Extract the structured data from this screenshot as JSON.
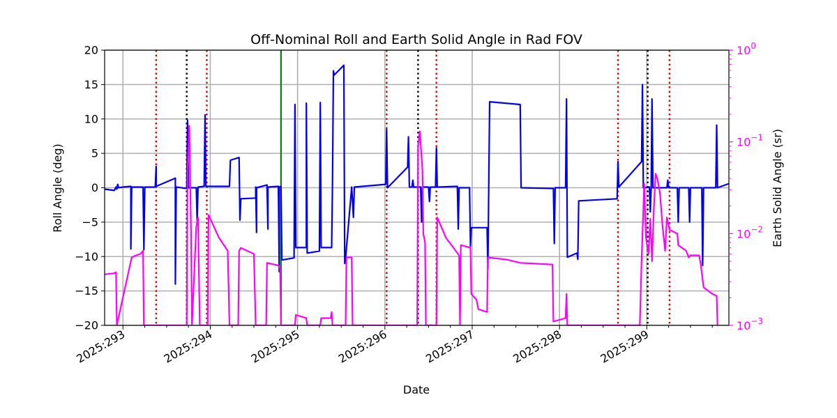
{
  "chart_data": {
    "type": "line",
    "title": "Off-Nominal Roll and Earth Solid Angle in Rad FOV",
    "xlabel": "Date",
    "ylabel": "Roll Angle (deg)",
    "y2label": "Earth Solid Angle (sr)",
    "xlim": [
      292.79,
      299.94
    ],
    "ylim": [
      -20,
      20
    ],
    "y2lim": [
      0.001,
      1
    ],
    "y2scale": "log",
    "grid": true,
    "x_ticks": [
      {
        "value": 293,
        "label": "2025:293"
      },
      {
        "value": 294,
        "label": "2025:294"
      },
      {
        "value": 295,
        "label": "2025:295"
      },
      {
        "value": 296,
        "label": "2025:296"
      },
      {
        "value": 297,
        "label": "2025:297"
      },
      {
        "value": 298,
        "label": "2025:298"
      },
      {
        "value": 299,
        "label": "2025:299"
      }
    ],
    "x_minor_ticks": [
      293.25,
      293.5,
      293.75,
      294.25,
      294.5,
      294.75,
      295.25,
      295.5,
      295.75,
      296.25,
      296.5,
      296.75,
      297.25,
      297.5,
      297.75,
      298.25,
      298.5,
      298.75,
      299.25,
      299.5,
      299.75
    ],
    "y_ticks": [
      {
        "value": 20,
        "label": "20"
      },
      {
        "value": 15,
        "label": "15"
      },
      {
        "value": 10,
        "label": "10"
      },
      {
        "value": 5,
        "label": "5"
      },
      {
        "value": 0,
        "label": "0"
      },
      {
        "value": -5,
        "label": "−5"
      },
      {
        "value": -10,
        "label": "−10"
      },
      {
        "value": -15,
        "label": "−15"
      },
      {
        "value": -20,
        "label": "−20"
      }
    ],
    "y2_ticks": [
      {
        "value": 1,
        "label": "10^0"
      },
      {
        "value": 0.1,
        "label": "10^−1"
      },
      {
        "value": 0.01,
        "label": "10^−2"
      },
      {
        "value": 0.001,
        "label": "10^−3"
      }
    ],
    "vlines": [
      {
        "x": 293.38,
        "color": "#dd0000",
        "style": "dotted"
      },
      {
        "x": 293.73,
        "color": "#000000",
        "style": "dotted"
      },
      {
        "x": 293.96,
        "color": "#dd0000",
        "style": "dotted"
      },
      {
        "x": 294.81,
        "color": "#008000",
        "style": "solid"
      },
      {
        "x": 296.02,
        "color": "#dd0000",
        "style": "dotted"
      },
      {
        "x": 296.38,
        "color": "#000000",
        "style": "dotted"
      },
      {
        "x": 296.59,
        "color": "#dd0000",
        "style": "dotted"
      },
      {
        "x": 298.67,
        "color": "#dd0000",
        "style": "dotted"
      },
      {
        "x": 299.01,
        "color": "#000000",
        "style": "dotted"
      },
      {
        "x": 299.26,
        "color": "#dd0000",
        "style": "dotted"
      }
    ],
    "series": [
      {
        "axis": "left",
        "color": "#0000ee",
        "points": [
          [
            292.79,
            -0.2
          ],
          [
            292.9,
            -0.4
          ],
          [
            292.92,
            0.1
          ],
          [
            292.93,
            -0.2
          ],
          [
            292.94,
            0.5
          ],
          [
            292.95,
            0
          ],
          [
            293.0,
            0.1
          ],
          [
            293.09,
            0.2
          ],
          [
            293.09,
            -8.9
          ],
          [
            293.1,
            0.1
          ],
          [
            293.23,
            0.1
          ],
          [
            293.24,
            -9.0
          ],
          [
            293.25,
            0.1
          ],
          [
            293.37,
            0.1
          ],
          [
            293.38,
            3.1
          ],
          [
            293.38,
            0.2
          ],
          [
            293.6,
            1.4
          ],
          [
            293.6,
            -14.0
          ],
          [
            293.61,
            0.1
          ],
          [
            293.73,
            -0.1
          ],
          [
            293.74,
            9.8
          ],
          [
            293.75,
            0
          ],
          [
            293.84,
            0
          ],
          [
            293.85,
            -5.0
          ],
          [
            293.86,
            0.1
          ],
          [
            293.93,
            0.2
          ],
          [
            293.94,
            10.6
          ],
          [
            293.95,
            0.2
          ],
          [
            294.22,
            0.2
          ],
          [
            294.23,
            4.0
          ],
          [
            294.33,
            4.4
          ],
          [
            294.34,
            -4.7
          ],
          [
            294.35,
            -1.6
          ],
          [
            294.52,
            -1.5
          ],
          [
            294.52,
            0.1
          ],
          [
            294.53,
            -6.5
          ],
          [
            294.53,
            0
          ],
          [
            294.65,
            0.4
          ],
          [
            294.66,
            -6.0
          ],
          [
            294.66,
            0.1
          ],
          [
            294.78,
            0.2
          ],
          [
            294.79,
            -12.2
          ],
          [
            294.79,
            0.1
          ],
          [
            294.81,
            0.2
          ],
          [
            294.82,
            -10.5
          ],
          [
            294.96,
            -10.2
          ],
          [
            294.97,
            12.1
          ],
          [
            294.98,
            -8.7
          ],
          [
            295.1,
            -8.7
          ],
          [
            295.1,
            12.3
          ],
          [
            295.11,
            -9.5
          ],
          [
            295.25,
            -9.2
          ],
          [
            295.26,
            12.4
          ],
          [
            295.27,
            -8.7
          ],
          [
            295.39,
            -8.7
          ],
          [
            295.4,
            0.7
          ],
          [
            295.41,
            17.0
          ],
          [
            295.42,
            16.4
          ],
          [
            295.53,
            17.8
          ],
          [
            295.54,
            -11.0
          ],
          [
            295.55,
            -10.2
          ],
          [
            295.62,
            0.1
          ],
          [
            295.64,
            -4.3
          ],
          [
            295.65,
            0.1
          ],
          [
            296.01,
            0.5
          ],
          [
            296.02,
            8.5
          ],
          [
            296.03,
            0
          ],
          [
            296.26,
            3.0
          ],
          [
            296.27,
            7.4
          ],
          [
            296.28,
            0.1
          ],
          [
            296.31,
            0.1
          ],
          [
            296.32,
            1.1
          ],
          [
            296.33,
            0.1
          ],
          [
            296.41,
            0.1
          ],
          [
            296.42,
            -5.0
          ],
          [
            296.43,
            0.1
          ],
          [
            296.5,
            0.1
          ],
          [
            296.51,
            -2.0
          ],
          [
            296.52,
            0.1
          ],
          [
            296.58,
            0.1
          ],
          [
            296.59,
            5.8
          ],
          [
            296.6,
            0.1
          ],
          [
            296.83,
            0.2
          ],
          [
            296.84,
            -6.0
          ],
          [
            296.85,
            0
          ],
          [
            296.97,
            0
          ],
          [
            296.98,
            -8.5
          ],
          [
            296.99,
            -5.8
          ],
          [
            297.17,
            -5.8
          ],
          [
            297.18,
            -11.8
          ],
          [
            297.2,
            12.5
          ],
          [
            297.55,
            12.1
          ],
          [
            297.56,
            0
          ],
          [
            297.93,
            -0.1
          ],
          [
            297.94,
            -8.1
          ],
          [
            297.95,
            0
          ],
          [
            298.07,
            0
          ],
          [
            298.08,
            12.9
          ],
          [
            298.09,
            -10.1
          ],
          [
            298.2,
            -9.5
          ],
          [
            298.21,
            -10.4
          ],
          [
            298.22,
            -1.9
          ],
          [
            298.66,
            -1.6
          ],
          [
            298.67,
            3.8
          ],
          [
            298.68,
            0.1
          ],
          [
            298.94,
            3.8
          ],
          [
            298.95,
            15.0
          ],
          [
            298.96,
            0
          ],
          [
            299.03,
            0.1
          ],
          [
            299.04,
            -3.5
          ],
          [
            299.05,
            0
          ],
          [
            299.06,
            12.9
          ],
          [
            299.07,
            0
          ],
          [
            299.23,
            0
          ],
          [
            299.24,
            1.1
          ],
          [
            299.25,
            0
          ],
          [
            299.35,
            0
          ],
          [
            299.36,
            -5.0
          ],
          [
            299.37,
            0
          ],
          [
            299.48,
            0
          ],
          [
            299.49,
            -5.0
          ],
          [
            299.5,
            0
          ],
          [
            299.63,
            0
          ],
          [
            299.64,
            -11.3
          ],
          [
            299.65,
            0
          ],
          [
            299.79,
            0
          ],
          [
            299.8,
            9.1
          ],
          [
            299.81,
            0
          ],
          [
            299.94,
            0.6
          ]
        ]
      },
      {
        "axis": "right",
        "color": "#ff00ff",
        "points": [
          [
            292.79,
            0.0036
          ],
          [
            292.9,
            0.0037
          ],
          [
            292.92,
            0.0038
          ],
          [
            292.93,
            0.001
          ],
          [
            293.1,
            0.0055
          ],
          [
            293.15,
            0.0058
          ],
          [
            293.2,
            0.006
          ],
          [
            293.23,
            0.0065
          ],
          [
            293.24,
            0.001
          ],
          [
            293.73,
            0.001
          ],
          [
            293.74,
            0.05
          ],
          [
            293.76,
            0.15
          ],
          [
            293.78,
            0.01
          ],
          [
            293.79,
            0.001
          ],
          [
            293.84,
            0.012
          ],
          [
            293.86,
            0.015
          ],
          [
            293.88,
            0.001
          ],
          [
            293.97,
            0.001
          ],
          [
            293.98,
            0.016
          ],
          [
            294.1,
            0.009
          ],
          [
            294.2,
            0.0065
          ],
          [
            294.22,
            0.001
          ],
          [
            294.32,
            0.001
          ],
          [
            294.33,
            0.0065
          ],
          [
            294.35,
            0.007
          ],
          [
            294.5,
            0.006
          ],
          [
            294.52,
            0.001
          ],
          [
            294.64,
            0.001
          ],
          [
            294.65,
            0.0048
          ],
          [
            294.78,
            0.0045
          ],
          [
            294.8,
            0.0042
          ],
          [
            294.81,
            0.001
          ],
          [
            294.97,
            0.001
          ],
          [
            294.98,
            0.0013
          ],
          [
            295.1,
            0.0012
          ],
          [
            295.11,
            0.001
          ],
          [
            295.26,
            0.001
          ],
          [
            295.27,
            0.0012
          ],
          [
            295.38,
            0.0012
          ],
          [
            295.39,
            0.0014
          ],
          [
            295.4,
            0.001
          ],
          [
            295.55,
            0.001
          ],
          [
            295.56,
            0.0055
          ],
          [
            295.62,
            0.0055
          ],
          [
            295.63,
            0.001
          ],
          [
            296.37,
            0.001
          ],
          [
            296.38,
            0.09
          ],
          [
            296.4,
            0.13
          ],
          [
            296.43,
            0.05
          ],
          [
            296.44,
            0.01
          ],
          [
            296.46,
            0.008
          ],
          [
            296.47,
            0.001
          ],
          [
            296.59,
            0.001
          ],
          [
            296.6,
            0.015
          ],
          [
            296.7,
            0.009
          ],
          [
            296.85,
            0.0058
          ],
          [
            296.86,
            0.001
          ],
          [
            296.87,
            0.0075
          ],
          [
            296.98,
            0.007
          ],
          [
            296.99,
            0.0022
          ],
          [
            297.05,
            0.0019
          ],
          [
            297.07,
            0.0015
          ],
          [
            297.17,
            0.0014
          ],
          [
            297.18,
            0.0055
          ],
          [
            297.4,
            0.0052
          ],
          [
            297.55,
            0.0048
          ],
          [
            297.92,
            0.0046
          ],
          [
            297.93,
            0.0011
          ],
          [
            298.07,
            0.0012
          ],
          [
            298.08,
            0.0022
          ],
          [
            298.09,
            0.001
          ],
          [
            298.92,
            0.001
          ],
          [
            298.94,
            0.005
          ],
          [
            298.97,
            0.035
          ],
          [
            298.99,
            0.009
          ],
          [
            299.02,
            0.006
          ],
          [
            299.04,
            0.0145
          ],
          [
            299.06,
            0.005
          ],
          [
            299.08,
            0.018
          ],
          [
            299.1,
            0.045
          ],
          [
            299.12,
            0.04
          ],
          [
            299.15,
            0.028
          ],
          [
            299.18,
            0.012
          ],
          [
            299.21,
            0.0065
          ],
          [
            299.23,
            0.015
          ],
          [
            299.26,
            0.011
          ],
          [
            299.35,
            0.01
          ],
          [
            299.36,
            0.0075
          ],
          [
            299.45,
            0.0065
          ],
          [
            299.48,
            0.0055
          ],
          [
            299.5,
            0.0058
          ],
          [
            299.6,
            0.0058
          ],
          [
            299.62,
            0.0045
          ],
          [
            299.65,
            0.0026
          ],
          [
            299.75,
            0.0022
          ],
          [
            299.8,
            0.0021
          ],
          [
            299.81,
            0.001
          ]
        ]
      }
    ]
  }
}
